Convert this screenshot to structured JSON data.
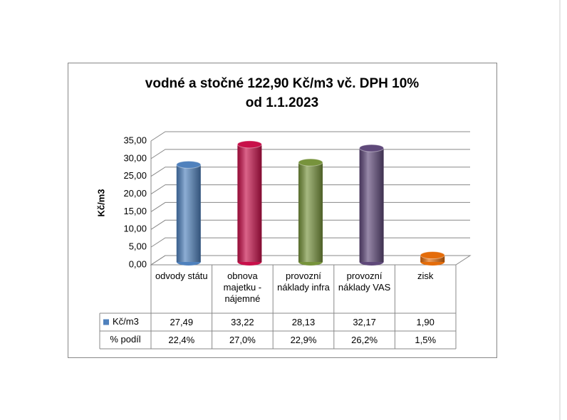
{
  "chart_data": {
    "type": "bar",
    "title": "vodné a stočné  122,90 Kč/m3 vč. DPH 10%",
    "subtitle": "od 1.1.2023",
    "y_label": "Kč/m3",
    "categories": [
      "odvody státu",
      "obnova majetku - nájemné",
      "provozní náklady infra",
      "provozní náklady VAS",
      "zisk"
    ],
    "series": [
      {
        "name": "Kč/m3",
        "color": "#4f81bd",
        "colors": [
          "#4f81bd",
          "#c8104a",
          "#77933c",
          "#5f497a",
          "#e46c0a"
        ],
        "values": [
          27.49,
          33.22,
          28.13,
          32.17,
          1.9
        ],
        "value_labels": [
          "27,49",
          "33,22",
          "28,13",
          "32,17",
          "1,90"
        ]
      }
    ],
    "share_row": {
      "name": "% podíl",
      "labels": [
        "22,4%",
        "27,0%",
        "22,9%",
        "26,2%",
        "1,5%"
      ]
    },
    "ylim": [
      0,
      35
    ],
    "yticks": [
      {
        "value": 0,
        "label": "0,00"
      },
      {
        "value": 5,
        "label": "5,00"
      },
      {
        "value": 10,
        "label": "10,00"
      },
      {
        "value": 15,
        "label": "15,00"
      },
      {
        "value": 20,
        "label": "20,00"
      },
      {
        "value": 25,
        "label": "25,00"
      },
      {
        "value": 30,
        "label": "30,00"
      },
      {
        "value": 35,
        "label": "35,00"
      }
    ],
    "grid": true
  }
}
